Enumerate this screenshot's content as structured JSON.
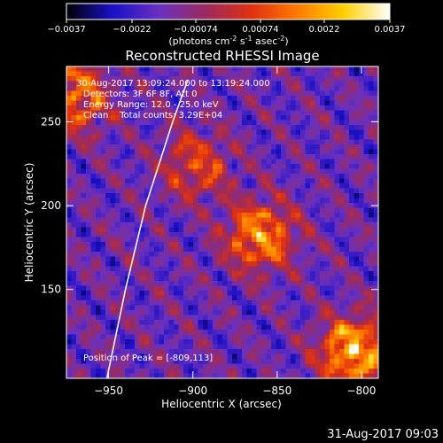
{
  "chart_data": {
    "type": "heatmap",
    "title": "Reconstructed RHESSI Image",
    "xlabel": "Heliocentric X (arcsec)",
    "ylabel": "Heliocentric Y (arcsec)",
    "xlim": [
      -975,
      -790
    ],
    "ylim": [
      97,
      283
    ],
    "x_ticks": [
      -950,
      -900,
      -850,
      -800
    ],
    "x_tick_labels": [
      "-950",
      "-900",
      "-850",
      "-800"
    ],
    "y_ticks": [
      150,
      200,
      250
    ],
    "y_tick_labels": [
      "150",
      "200",
      "250"
    ],
    "colorbar": {
      "range": [
        -0.0037,
        0.0037
      ],
      "ticks": [
        -0.0037,
        -0.0022,
        -0.00074,
        0.00074,
        0.0022,
        0.0037
      ],
      "tick_labels": [
        "-0.0037",
        "-0.0022",
        "-0.00074",
        "0.00074",
        "0.0022",
        "0.0037"
      ],
      "unit_label": "(photons cm-2 s-1 asec-2)",
      "colormap": [
        "#000000",
        "#1a10c8",
        "#6a30c0",
        "#9a2a60",
        "#e03010",
        "#ff7a00",
        "#ffd000",
        "#ffffff"
      ]
    },
    "annotations": [
      "30-Aug-2017 13:09:24.000 to 13:19:24.000",
      "Detectors: 3F 6F 8F, Att 0",
      "Energy Range: 12.0 - 25.0 keV",
      "Clean    Total counts: 3.29E+04",
      "Position of Peak = [-809,113]"
    ],
    "sources": [
      {
        "x": -860,
        "y": 182,
        "strength": 0.85
      },
      {
        "x": -805,
        "y": 113,
        "strength": 1.0
      },
      {
        "x": -970,
        "y": 265,
        "strength": 0.75
      },
      {
        "x": -898,
        "y": 224,
        "strength": 0.55
      }
    ],
    "limb_curve": [
      [
        -951,
        97
      ],
      [
        -940,
        150
      ],
      [
        -928,
        200
      ],
      [
        -912,
        250
      ],
      [
        -903,
        275
      ]
    ],
    "grid": false,
    "timestamp": "31-Aug-2017 09:03"
  }
}
